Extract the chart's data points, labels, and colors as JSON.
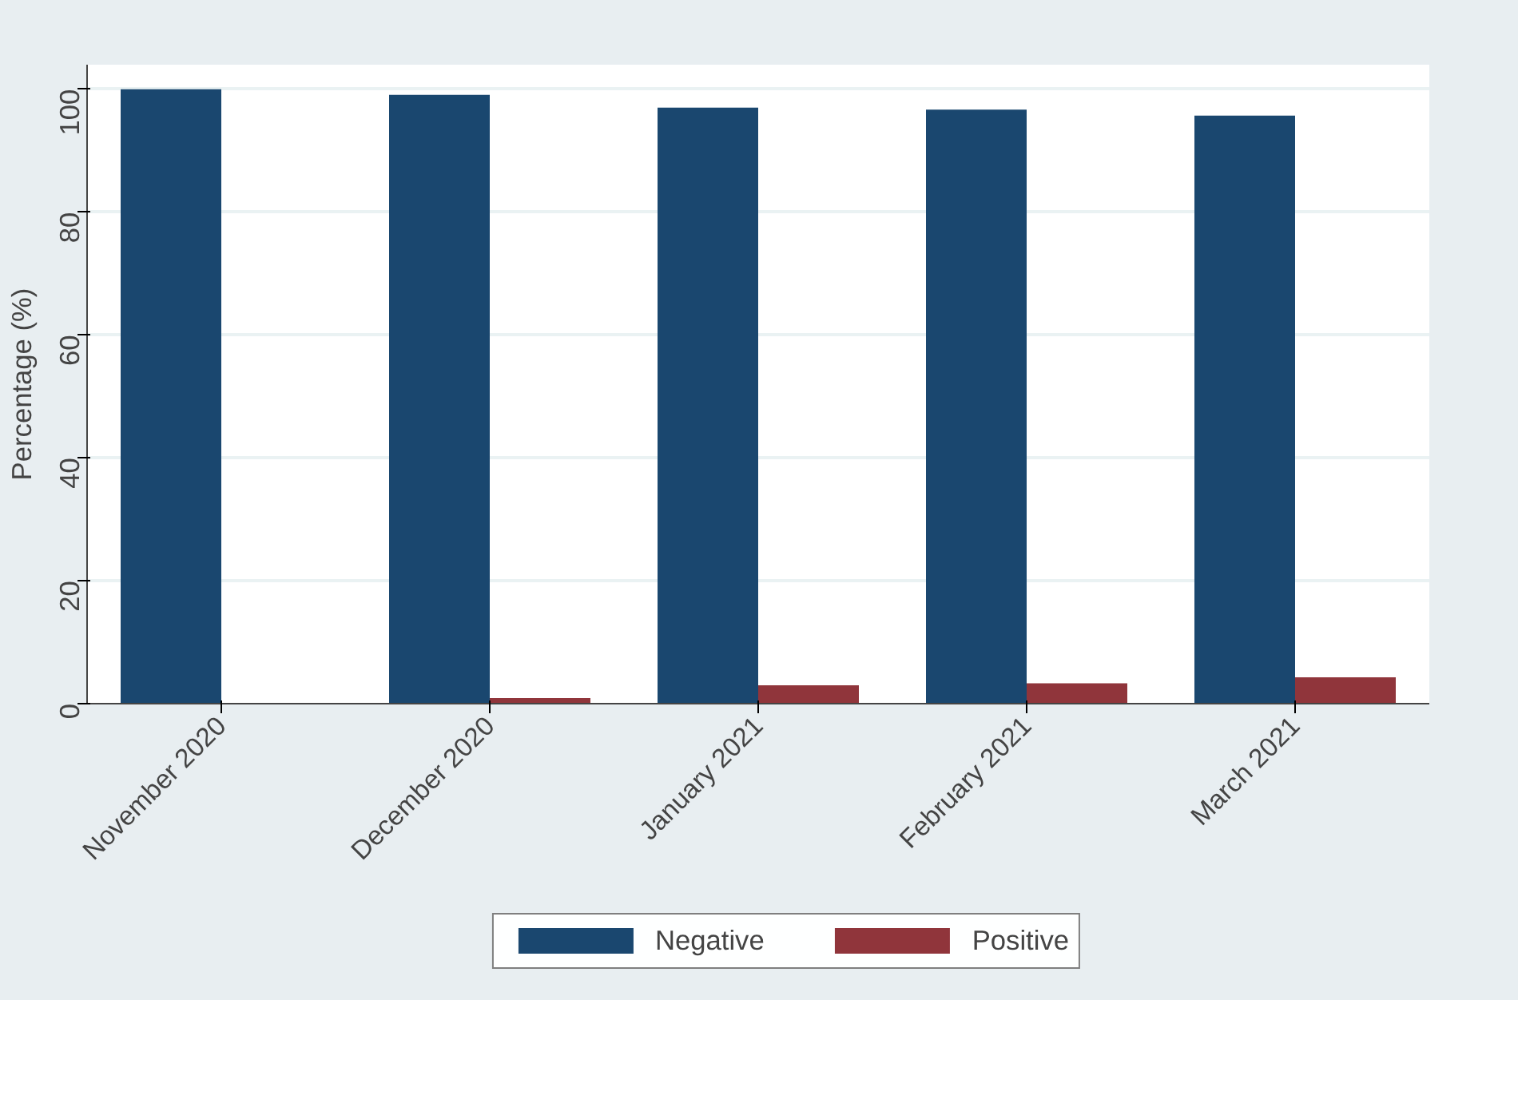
{
  "chart_data": {
    "type": "bar",
    "ylabel": "Percentage (%)",
    "categories": [
      "November 2020",
      "December 2020",
      "January 2021",
      "February 2021",
      "March 2021"
    ],
    "series": [
      {
        "name": "Negative",
        "color": "#1a476f",
        "values": [
          100,
          99.1,
          97.0,
          96.7,
          95.7
        ]
      },
      {
        "name": "Positive",
        "color": "#90353b",
        "values": [
          0,
          0.9,
          3.0,
          3.3,
          4.3
        ]
      }
    ],
    "ylim": [
      0,
      104
    ],
    "yticks": [
      0,
      20,
      40,
      60,
      80,
      100
    ],
    "grid": "y",
    "legend": "bottom"
  }
}
